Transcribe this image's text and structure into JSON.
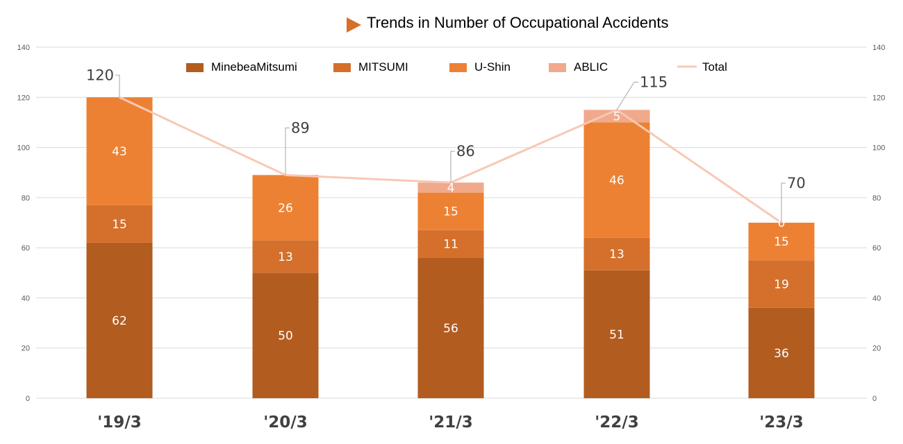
{
  "chart_data": {
    "type": "bar",
    "stacked": true,
    "title": "Trends in Number of Occupational Accidents",
    "categories": [
      "'19/3",
      "'20/3",
      "'21/3",
      "'22/3",
      "'23/3"
    ],
    "ylim": [
      0,
      140
    ],
    "yticks": [
      0,
      20,
      40,
      60,
      80,
      100,
      120,
      140
    ],
    "secondary_ylim": [
      0,
      140
    ],
    "grid": true,
    "legend_position": "top",
    "series": [
      {
        "name": "MinebeaMitsumi",
        "type": "bar",
        "color": "#b25c20",
        "values": [
          62,
          50,
          56,
          51,
          36
        ]
      },
      {
        "name": "MITSUMI",
        "type": "bar",
        "color": "#d4702b",
        "values": [
          15,
          13,
          11,
          13,
          19
        ]
      },
      {
        "name": "U-Shin",
        "type": "bar",
        "color": "#ed8133",
        "values": [
          43,
          26,
          15,
          46,
          15
        ]
      },
      {
        "name": "ABLIC",
        "type": "bar",
        "color": "#f0a98b",
        "values": [
          0,
          0,
          4,
          5,
          0
        ]
      },
      {
        "name": "Total",
        "type": "line",
        "color": "#f8c8b4",
        "values": [
          120,
          89,
          86,
          115,
          70
        ]
      }
    ],
    "segment_labels_shown": [
      [
        true,
        true,
        true,
        false
      ],
      [
        true,
        true,
        true,
        false
      ],
      [
        true,
        true,
        true,
        true
      ],
      [
        true,
        true,
        true,
        true
      ],
      [
        true,
        true,
        true,
        true
      ]
    ]
  }
}
